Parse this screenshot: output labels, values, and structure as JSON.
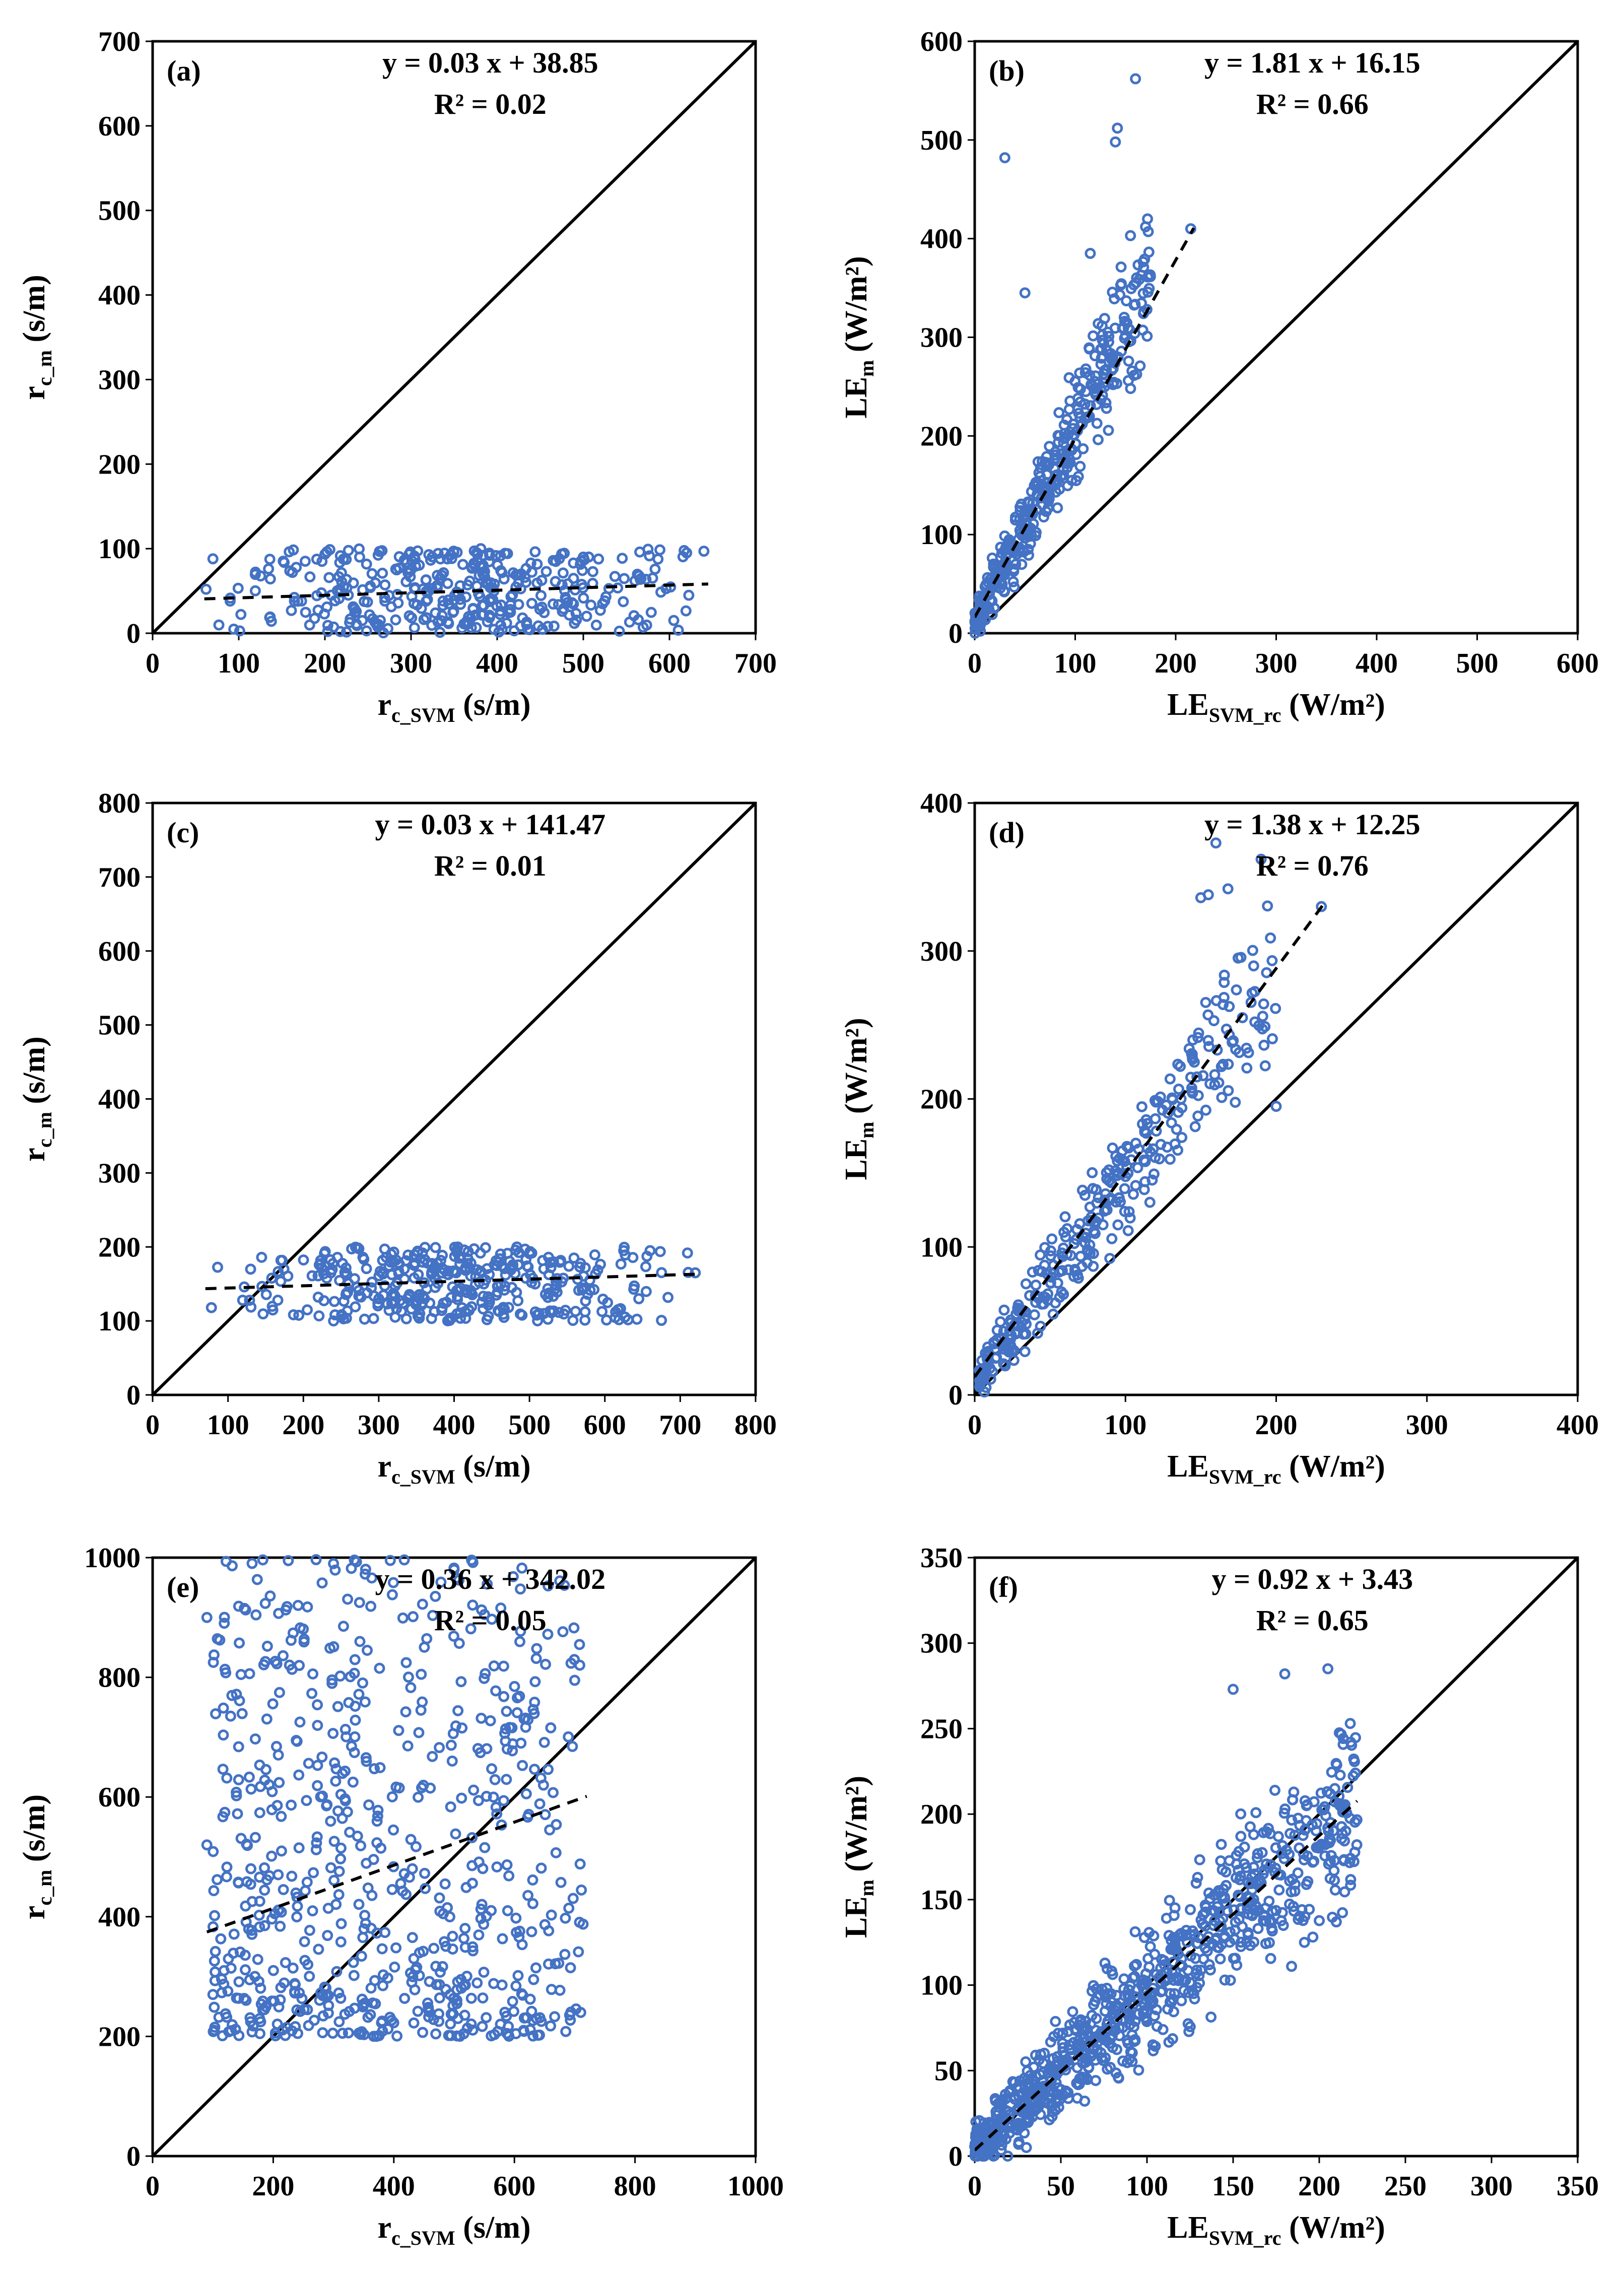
{
  "figure": {
    "point_color": "#4472C4",
    "line_color": "#000000"
  },
  "chart_data": [
    {
      "id": "a",
      "type": "scatter",
      "panel_label": "(a)",
      "xlabel": "r",
      "xlabel_sub": "c_SVM",
      "xlabel_unit": "(s/m)",
      "ylabel": "r",
      "ylabel_sub": "c_m",
      "ylabel_unit": "(s/m)",
      "xlim": [
        0,
        700
      ],
      "ylim": [
        0,
        700
      ],
      "xticks": [
        0,
        100,
        200,
        300,
        400,
        500,
        600,
        700
      ],
      "yticks": [
        0,
        100,
        200,
        300,
        400,
        500,
        600,
        700
      ],
      "equation": "y = 0.03 x + 38.85",
      "r2": "R² = 0.02",
      "fit": {
        "slope": 0.03,
        "intercept": 38.85,
        "x_range": [
          60,
          645
        ]
      },
      "cloud": {
        "n": 380,
        "x_range": [
          60,
          645
        ],
        "y_range": [
          0,
          100
        ]
      },
      "points": [
        [
          70,
          88
        ],
        [
          62,
          52
        ],
        [
          640,
          97
        ],
        [
          620,
          95
        ],
        [
          560,
          62
        ],
        [
          500,
          90
        ],
        [
          480,
          40
        ],
        [
          90,
          38
        ]
      ]
    },
    {
      "id": "b",
      "type": "scatter",
      "panel_label": "(b)",
      "xlabel": "LE",
      "xlabel_sub": "SVM_rc",
      "xlabel_unit": "(W/m²)",
      "ylabel": "LE",
      "ylabel_sub": "m",
      "ylabel_unit": "(W/m²)",
      "xlim": [
        0,
        600
      ],
      "ylim": [
        0,
        600
      ],
      "xticks": [
        0,
        100,
        200,
        300,
        400,
        500,
        600
      ],
      "yticks": [
        0,
        100,
        200,
        300,
        400,
        500,
        600
      ],
      "equation": "y = 1.81 x + 16.15",
      "r2": "R² = 0.66",
      "fit": {
        "slope": 1.81,
        "intercept": 16.15,
        "x_range": [
          0,
          218
        ]
      },
      "cloud": {
        "n": 400,
        "x_range": [
          0,
          175
        ],
        "slope": 1.95,
        "intercept": 12,
        "noise": 40,
        "y_range": [
          0,
          420
        ]
      },
      "points": [
        [
          160,
          562
        ],
        [
          142,
          512
        ],
        [
          140,
          498
        ],
        [
          30,
          482
        ],
        [
          170,
          412
        ],
        [
          155,
          403
        ],
        [
          98,
          212
        ],
        [
          115,
          385
        ],
        [
          50,
          345
        ],
        [
          215,
          410
        ]
      ]
    },
    {
      "id": "c",
      "type": "scatter",
      "panel_label": "(c)",
      "xlabel": "r",
      "xlabel_sub": "c_SVM",
      "xlabel_unit": "(s/m)",
      "ylabel": "r",
      "ylabel_sub": "c_m",
      "ylabel_unit": "(s/m)",
      "xlim": [
        0,
        800
      ],
      "ylim": [
        0,
        800
      ],
      "xticks": [
        0,
        100,
        200,
        300,
        400,
        500,
        600,
        700,
        800
      ],
      "yticks": [
        0,
        100,
        200,
        300,
        400,
        500,
        600,
        700,
        800
      ],
      "equation": "y = 0.03 x + 141.47",
      "r2": "R² = 0.01",
      "fit": {
        "slope": 0.03,
        "intercept": 141.47,
        "x_range": [
          70,
          725
        ]
      },
      "cloud": {
        "n": 380,
        "x_range": [
          75,
          725
        ],
        "y_range": [
          100,
          200
        ]
      },
      "points": [
        [
          78,
          118
        ],
        [
          720,
          165
        ],
        [
          660,
          195
        ],
        [
          625,
          195
        ],
        [
          580,
          155
        ],
        [
          130,
          170
        ]
      ]
    },
    {
      "id": "d",
      "type": "scatter",
      "panel_label": "(d)",
      "xlabel": "LE",
      "xlabel_sub": "SVM_rc",
      "xlabel_unit": "(W/m²)",
      "ylabel": "LE",
      "ylabel_sub": "m",
      "ylabel_unit": "(W/m²)",
      "xlim": [
        0,
        400
      ],
      "ylim": [
        0,
        400
      ],
      "xticks": [
        0,
        100,
        200,
        300,
        400
      ],
      "yticks": [
        0,
        100,
        200,
        300,
        400
      ],
      "equation": "y = 1.38 x + 12.25",
      "r2": "R² = 0.76",
      "fit": {
        "slope": 1.38,
        "intercept": 12.25,
        "x_range": [
          0,
          232
        ]
      },
      "cloud": {
        "n": 340,
        "x_range": [
          3,
          200
        ],
        "slope": 1.4,
        "intercept": 8,
        "noise": 30,
        "y_range": [
          2,
          345
        ]
      },
      "points": [
        [
          190,
          362
        ],
        [
          160,
          373
        ],
        [
          150,
          336
        ],
        [
          155,
          338
        ],
        [
          200,
          195
        ],
        [
          230,
          330
        ],
        [
          168,
          342
        ]
      ]
    },
    {
      "id": "e",
      "type": "scatter",
      "panel_label": "(e)",
      "xlabel": "r",
      "xlabel_sub": "c_SVM",
      "xlabel_unit": "(s/m)",
      "ylabel": "r",
      "ylabel_sub": "c_m",
      "ylabel_unit": "(s/m)",
      "xlim": [
        0,
        1000
      ],
      "ylim": [
        0,
        1000
      ],
      "xticks": [
        0,
        200,
        400,
        600,
        800,
        1000
      ],
      "yticks": [
        0,
        200,
        400,
        600,
        800,
        1000
      ],
      "equation": "y = 0.36 x + 342.02",
      "r2": "R² = 0.05",
      "fit": {
        "slope": 0.36,
        "intercept": 342.02,
        "x_range": [
          90,
          720
        ]
      },
      "cloud": {
        "n": 700,
        "x_range": [
          100,
          715
        ],
        "y_range": [
          200,
          1000
        ]
      },
      "points": [
        [
          90,
          900
        ],
        [
          90,
          520
        ],
        [
          225,
          995
        ],
        [
          300,
          990
        ],
        [
          500,
          980
        ],
        [
          710,
          240
        ],
        [
          700,
          795
        ],
        [
          100,
          270
        ]
      ]
    },
    {
      "id": "f",
      "type": "scatter",
      "panel_label": "(f)",
      "xlabel": "LE",
      "xlabel_sub": "SVM_rc",
      "xlabel_unit": "(W/m²)",
      "ylabel": "LE",
      "ylabel_sub": "m",
      "ylabel_unit": "(W/m²)",
      "xlim": [
        0,
        350
      ],
      "ylim": [
        0,
        350
      ],
      "xticks": [
        0,
        50,
        100,
        150,
        200,
        250,
        300,
        350
      ],
      "yticks": [
        0,
        50,
        100,
        150,
        200,
        250,
        300,
        350
      ],
      "equation": "y = 0.92 x + 3.43",
      "r2": "R² = 0.65",
      "fit": {
        "slope": 0.92,
        "intercept": 3.43,
        "x_range": [
          0,
          222
        ]
      },
      "cloud": {
        "n": 850,
        "x_range": [
          0,
          222
        ],
        "slope": 0.92,
        "intercept": 3.4,
        "noise": 30,
        "y_range": [
          0,
          290
        ]
      },
      "points": [
        [
          180,
          282
        ],
        [
          205,
          285
        ],
        [
          150,
          273
        ],
        [
          218,
          253
        ],
        [
          212,
          205
        ],
        [
          30,
          5
        ]
      ]
    }
  ]
}
